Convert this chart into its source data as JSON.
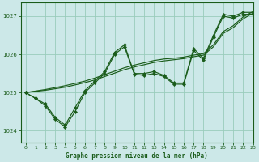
{
  "title": "Graphe pression niveau de la mer (hPa)",
  "bg_color": "#cce8e8",
  "grid_color": "#99ccbb",
  "line_color": "#1a5c1a",
  "xlim": [
    -0.5,
    23
  ],
  "ylim": [
    1023.7,
    1027.35
  ],
  "yticks": [
    1024,
    1025,
    1026,
    1027
  ],
  "xticks": [
    0,
    1,
    2,
    3,
    4,
    5,
    6,
    7,
    8,
    9,
    10,
    11,
    12,
    13,
    14,
    15,
    16,
    17,
    18,
    19,
    20,
    21,
    22,
    23
  ],
  "y_marked": [
    1025.0,
    1024.85,
    1024.7,
    1024.35,
    1024.15,
    1024.6,
    1025.05,
    1025.3,
    1025.55,
    1026.05,
    1026.25,
    1025.5,
    1025.5,
    1025.55,
    1025.45,
    1025.25,
    1025.25,
    1026.15,
    1025.9,
    1026.5,
    1027.05,
    1027.0,
    1027.1,
    1027.1
  ],
  "y_lower": [
    1025.0,
    1024.85,
    1024.65,
    1024.3,
    1024.1,
    1024.5,
    1025.0,
    1025.25,
    1025.5,
    1026.0,
    1026.2,
    1025.48,
    1025.45,
    1025.5,
    1025.42,
    1025.22,
    1025.22,
    1026.1,
    1025.85,
    1026.45,
    1027.0,
    1026.95,
    1027.05,
    1027.05
  ],
  "y_diag1": [
    1025.0,
    1025.04,
    1025.08,
    1025.13,
    1025.18,
    1025.24,
    1025.3,
    1025.38,
    1025.47,
    1025.56,
    1025.65,
    1025.72,
    1025.78,
    1025.84,
    1025.88,
    1025.9,
    1025.93,
    1025.98,
    1026.02,
    1026.25,
    1026.6,
    1026.75,
    1026.98,
    1027.12
  ],
  "y_diag2": [
    1025.0,
    1025.03,
    1025.06,
    1025.1,
    1025.14,
    1025.2,
    1025.26,
    1025.33,
    1025.42,
    1025.51,
    1025.6,
    1025.67,
    1025.73,
    1025.79,
    1025.83,
    1025.86,
    1025.89,
    1025.94,
    1025.98,
    1026.2,
    1026.55,
    1026.7,
    1026.93,
    1027.08
  ]
}
